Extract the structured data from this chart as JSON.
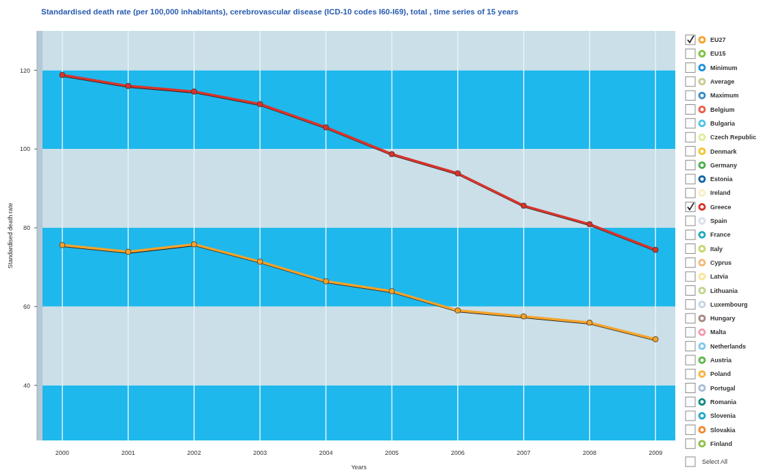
{
  "chart_data": {
    "type": "line",
    "title": "Standardised death rate (per 100,000 inhabitants), cerebrovascular disease (ICD-10 codes I60-I69), total , time series of 15 years",
    "xlabel": "Years",
    "ylabel": "Standardised death rate",
    "categories": [
      "2000",
      "2001",
      "2002",
      "2003",
      "2004",
      "2005",
      "2006",
      "2007",
      "2008",
      "2009"
    ],
    "ylim": [
      26,
      130
    ],
    "yticks": [
      40,
      60,
      80,
      100,
      120
    ],
    "grid": true,
    "legend": "right",
    "marker": "circle",
    "line_style": "solid",
    "annotations": [
      "Select All"
    ],
    "bands": [
      {
        "axis": "y",
        "from": 26,
        "to": 40,
        "color": "#1eb8ec"
      },
      {
        "axis": "y",
        "from": 60,
        "to": 80,
        "color": "#1eb8ec"
      },
      {
        "axis": "y",
        "from": 100,
        "to": 120,
        "color": "#1eb8ec"
      },
      {
        "axis": "y",
        "from": 40,
        "to": 60,
        "color": "#cadfe8"
      },
      {
        "axis": "y",
        "from": 80,
        "to": 100,
        "color": "#cadfe8"
      },
      {
        "axis": "y",
        "from": 120,
        "to": 130,
        "color": "#cadfe8"
      }
    ],
    "series": [
      {
        "name": "EU27",
        "color": "#f5a32a",
        "values": [
          75.6,
          73.9,
          75.8,
          71.4,
          66.4,
          63.9,
          59.0,
          57.5,
          55.9,
          51.7
        ]
      },
      {
        "name": "EU15",
        "color": "#7cc142",
        "values": [
          null,
          null,
          null,
          null,
          null,
          null,
          null,
          null,
          null,
          null
        ]
      },
      {
        "name": "Minimum",
        "color": "#1f8fd6",
        "values": [
          null,
          null,
          null,
          null,
          null,
          null,
          null,
          null,
          null,
          null
        ]
      },
      {
        "name": "Average",
        "color": "#c9c98a",
        "values": [
          null,
          null,
          null,
          null,
          null,
          null,
          null,
          null,
          null,
          null
        ]
      },
      {
        "name": "Maximum",
        "color": "#3b8ac4",
        "values": [
          null,
          null,
          null,
          null,
          null,
          null,
          null,
          null,
          null,
          null
        ]
      },
      {
        "name": "Belgium",
        "color": "#e8604c",
        "values": [
          null,
          null,
          null,
          null,
          null,
          null,
          null,
          null,
          null,
          null
        ]
      },
      {
        "name": "Bulgaria",
        "color": "#4fc3e8",
        "values": [
          null,
          null,
          null,
          null,
          null,
          null,
          null,
          null,
          null,
          null
        ]
      },
      {
        "name": "Czech Republic",
        "color": "#e0ec9a",
        "values": [
          null,
          null,
          null,
          null,
          null,
          null,
          null,
          null,
          null,
          null
        ]
      },
      {
        "name": "Denmark",
        "color": "#f5c431",
        "values": [
          null,
          null,
          null,
          null,
          null,
          null,
          null,
          null,
          null,
          null
        ]
      },
      {
        "name": "Germany",
        "color": "#4caf50",
        "values": [
          null,
          null,
          null,
          null,
          null,
          null,
          null,
          null,
          null,
          null
        ]
      },
      {
        "name": "Estonia",
        "color": "#1565a8",
        "values": [
          null,
          null,
          null,
          null,
          null,
          null,
          null,
          null,
          null,
          null
        ]
      },
      {
        "name": "Ireland",
        "color": "#f8eec0",
        "values": [
          null,
          null,
          null,
          null,
          null,
          null,
          null,
          null,
          null,
          null
        ]
      },
      {
        "name": "Greece",
        "color": "#d9342b",
        "values": [
          118.8,
          116.0,
          114.6,
          111.4,
          105.5,
          98.7,
          93.8,
          85.6,
          80.9,
          74.4
        ]
      },
      {
        "name": "Spain",
        "color": "#d6e0ec",
        "values": [
          null,
          null,
          null,
          null,
          null,
          null,
          null,
          null,
          null,
          null
        ]
      },
      {
        "name": "France",
        "color": "#26a9b8",
        "values": [
          null,
          null,
          null,
          null,
          null,
          null,
          null,
          null,
          null,
          null
        ]
      },
      {
        "name": "Italy",
        "color": "#c5d86a",
        "values": [
          null,
          null,
          null,
          null,
          null,
          null,
          null,
          null,
          null,
          null
        ]
      },
      {
        "name": "Cyprus",
        "color": "#f5b87a",
        "values": [
          null,
          null,
          null,
          null,
          null,
          null,
          null,
          null,
          null,
          null
        ]
      },
      {
        "name": "Latvia",
        "color": "#fbe59a",
        "values": [
          null,
          null,
          null,
          null,
          null,
          null,
          null,
          null,
          null,
          null
        ]
      },
      {
        "name": "Lithuania",
        "color": "#bcd68c",
        "values": [
          null,
          null,
          null,
          null,
          null,
          null,
          null,
          null,
          null,
          null
        ]
      },
      {
        "name": "Luxembourg",
        "color": "#c4d4e8",
        "values": [
          null,
          null,
          null,
          null,
          null,
          null,
          null,
          null,
          null,
          null
        ]
      },
      {
        "name": "Hungary",
        "color": "#a68a80",
        "values": [
          null,
          null,
          null,
          null,
          null,
          null,
          null,
          null,
          null,
          null
        ]
      },
      {
        "name": "Malta",
        "color": "#f29aaa",
        "values": [
          null,
          null,
          null,
          null,
          null,
          null,
          null,
          null,
          null,
          null
        ]
      },
      {
        "name": "Netherlands",
        "color": "#7ec8ee",
        "values": [
          null,
          null,
          null,
          null,
          null,
          null,
          null,
          null,
          null,
          null
        ]
      },
      {
        "name": "Austria",
        "color": "#5cb848",
        "values": [
          null,
          null,
          null,
          null,
          null,
          null,
          null,
          null,
          null,
          null
        ]
      },
      {
        "name": "Poland",
        "color": "#f7b23c",
        "values": [
          null,
          null,
          null,
          null,
          null,
          null,
          null,
          null,
          null,
          null
        ]
      },
      {
        "name": "Portugal",
        "color": "#a8bcd8",
        "values": [
          null,
          null,
          null,
          null,
          null,
          null,
          null,
          null,
          null,
          null
        ]
      },
      {
        "name": "Romania",
        "color": "#138a80",
        "values": [
          null,
          null,
          null,
          null,
          null,
          null,
          null,
          null,
          null,
          null
        ]
      },
      {
        "name": "Slovenia",
        "color": "#1fa8c8",
        "values": [
          null,
          null,
          null,
          null,
          null,
          null,
          null,
          null,
          null,
          null
        ]
      },
      {
        "name": "Slovakia",
        "color": "#f08a2c",
        "values": [
          null,
          null,
          null,
          null,
          null,
          null,
          null,
          null,
          null,
          null
        ]
      },
      {
        "name": "Finland",
        "color": "#8cc04a",
        "values": [
          null,
          null,
          null,
          null,
          null,
          null,
          null,
          null,
          null,
          null
        ]
      }
    ]
  }
}
